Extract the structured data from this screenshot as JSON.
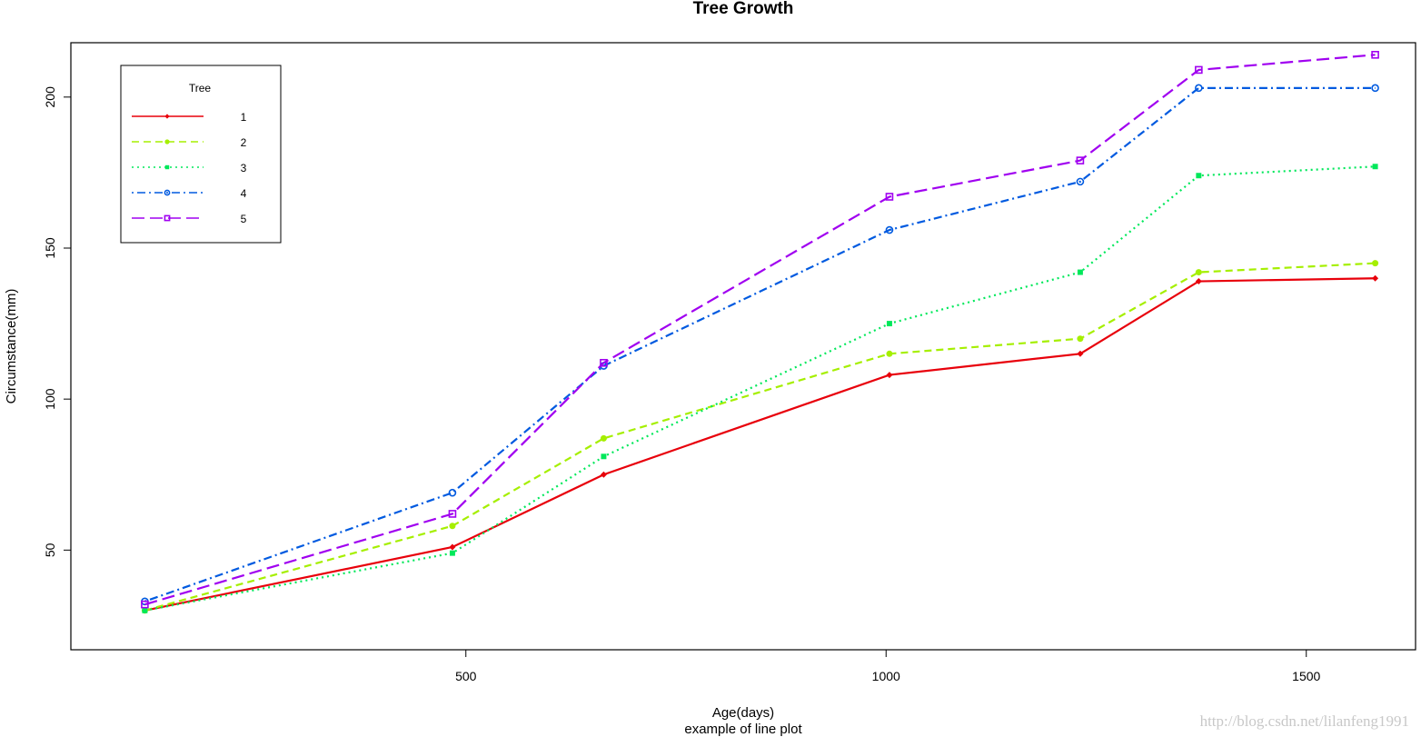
{
  "chart_data": {
    "type": "line",
    "title": "Tree Growth",
    "xlabel": "Age(days)",
    "subtitle": "example of line plot",
    "ylabel": "Circumstance(mm)",
    "xlim": [
      30,
      1630
    ],
    "ylim": [
      17,
      218
    ],
    "x_ticks": [
      500,
      1000,
      1500
    ],
    "y_ticks": [
      50,
      100,
      150,
      200
    ],
    "x": [
      118,
      484,
      664,
      1004,
      1231,
      1372,
      1582
    ],
    "legend": {
      "title": "Tree",
      "position": "top-left"
    },
    "series": [
      {
        "name": "1",
        "color": "#e8000b",
        "dash": "solid",
        "marker": "diamond",
        "values": [
          30,
          51,
          75,
          108,
          115,
          139,
          140
        ]
      },
      {
        "name": "2",
        "color": "#a5ef00",
        "dash": "dashed",
        "marker": "circle",
        "values": [
          30,
          58,
          87,
          115,
          120,
          142,
          145
        ]
      },
      {
        "name": "3",
        "color": "#00e85a",
        "dash": "dotted",
        "marker": "square",
        "values": [
          30,
          49,
          81,
          125,
          142,
          174,
          177
        ]
      },
      {
        "name": "4",
        "color": "#005ae0",
        "dash": "dotdash",
        "marker": "open-circle",
        "values": [
          33,
          69,
          111,
          156,
          172,
          203,
          203
        ]
      },
      {
        "name": "5",
        "color": "#a000f0",
        "dash": "longdash",
        "marker": "open-square",
        "values": [
          32,
          62,
          112,
          167,
          179,
          209,
          214
        ]
      }
    ]
  },
  "watermark": "http://blog.csdn.net/lilanfeng1991"
}
